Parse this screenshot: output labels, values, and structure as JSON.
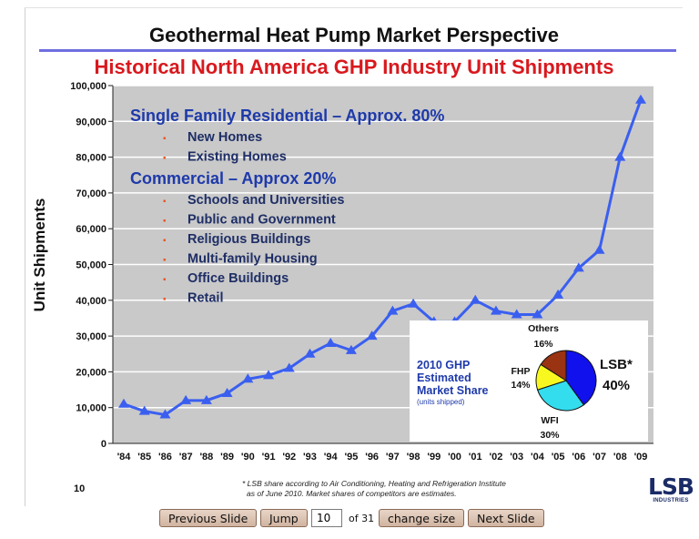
{
  "slide": {
    "title": "Geothermal Heat Pump Market Perspective",
    "subtitle": "Historical North America GHP Industry Unit Shipments",
    "page_number": "10",
    "footnote_line1": "* LSB share according to Air Conditioning, Heating and Refrigeration Institute",
    "footnote_line2": "as of June 2010.  Market shares of competitors are estimates.",
    "logo_text": "LSB",
    "logo_subtext": "INDUSTRIES"
  },
  "annotations": {
    "residential_heading": "Single Family Residential – Approx. 80%",
    "residential_items": [
      "New Homes",
      "Existing Homes"
    ],
    "commercial_heading": "Commercial – Approx 20%",
    "commercial_items": [
      "Schools and Universities",
      "Public and Government",
      "Religious Buildings",
      "Multi-family Housing",
      "Office Buildings",
      "Retail"
    ],
    "bullet": "▪"
  },
  "chart_data": [
    {
      "type": "line",
      "title": "Historical North America GHP Industry Unit Shipments",
      "xlabel": "",
      "ylabel": "Unit Shipments",
      "ylim": [
        0,
        100000
      ],
      "yticks": [
        "0",
        "10,000",
        "20,000",
        "30,000",
        "40,000",
        "50,000",
        "60,000",
        "70,000",
        "80,000",
        "90,000",
        "100,000"
      ],
      "categories": [
        "'84",
        "'85",
        "'86",
        "'87",
        "'88",
        "'89",
        "'90",
        "'91",
        "'92",
        "'93",
        "'94",
        "'95",
        "'96",
        "'97",
        "'98",
        "'99",
        "'00",
        "'01",
        "'02",
        "'03",
        "'04",
        "'05",
        "'06",
        "'07",
        "'08",
        "'09"
      ],
      "series": [
        {
          "name": "Unit Shipments",
          "values": [
            11000,
            9000,
            8000,
            12000,
            12000,
            14000,
            18000,
            19000,
            21000,
            25000,
            28000,
            26000,
            30000,
            37000,
            39000,
            34000,
            34000,
            40000,
            37000,
            36000,
            36000,
            41500,
            49000,
            54000,
            80000,
            96000
          ]
        }
      ],
      "grid": true,
      "colors": {
        "line": "#3a5ff0",
        "plot_bg": "#c9c9c9",
        "grid": "#ffffff"
      }
    },
    {
      "type": "pie",
      "title": "2010 GHP Estimated Market Share",
      "title_lines": [
        "2010 GHP",
        "Estimated",
        "Market Share"
      ],
      "note": "(units shipped)",
      "slices": [
        {
          "name": "LSB*",
          "value": 40,
          "label": "40%",
          "color": "#1111ee"
        },
        {
          "name": "WFI",
          "value": 30,
          "label": "30%",
          "color": "#33ddee"
        },
        {
          "name": "FHP",
          "value": 14,
          "label": "14%",
          "color": "#f8f820"
        },
        {
          "name": "Others",
          "value": 16,
          "label": "16%",
          "color": "#993311"
        }
      ]
    }
  ],
  "navigation": {
    "previous_label": "Previous Slide",
    "jump_label": "Jump",
    "page_value": "10",
    "of_label": "of 31",
    "change_size_label": "change size",
    "next_label": "Next Slide"
  }
}
